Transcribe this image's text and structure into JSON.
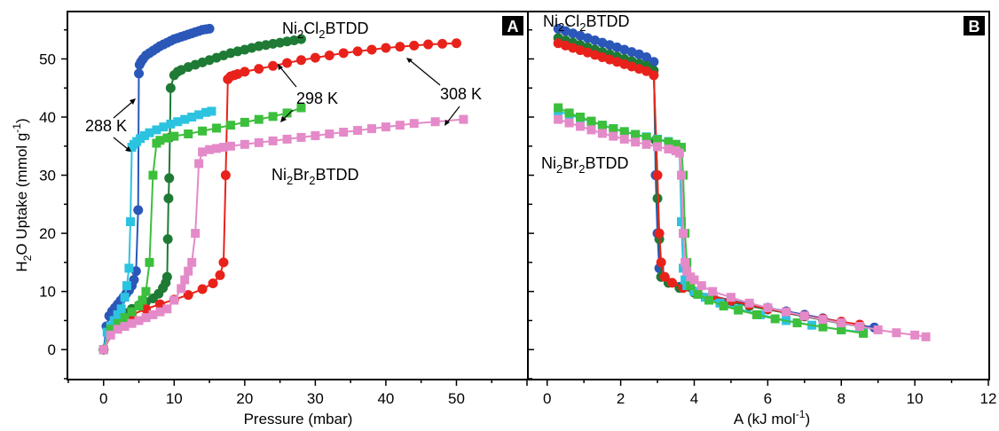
{
  "chart_data": [
    {
      "panel_label": "A",
      "type": "scatter",
      "xlabel": "Pressure (mbar)",
      "ylabel": "H2O Uptake (mmol g-1)",
      "ylabel_parts": {
        "a": "H",
        "b": "2",
        "c": "O Uptake (mmol g",
        "d": "-1",
        "e": ")"
      },
      "xlim": [
        -5,
        60
      ],
      "ylim": [
        -5,
        58
      ],
      "xticks": [
        "0",
        "10",
        "20",
        "30",
        "40",
        "50"
      ],
      "yticks": [
        "0",
        "10",
        "20",
        "30",
        "40",
        "50"
      ],
      "grid": false,
      "annotations": {
        "cl_label": {
          "a": "Ni",
          "b": "2",
          "c": "Cl",
          "d": "2",
          "e": "BTDD"
        },
        "br_label": {
          "a": "Ni",
          "b": "2",
          "c": "Br",
          "d": "2",
          "e": "BTDD"
        },
        "t288": "288 K",
        "t298": "298 K",
        "t308": "308 K"
      },
      "series": [
        {
          "compound": "Ni2Cl2BTDD",
          "temp": "288 K",
          "marker": "circle",
          "color": "#2b57b8",
          "x": [
            0,
            0.4,
            0.8,
            1.2,
            1.6,
            2.0,
            2.4,
            2.8,
            3.2,
            3.6,
            4.0,
            4.3,
            4.6,
            4.9,
            5.0,
            5.1,
            5.3,
            5.6,
            6.0,
            6.5,
            7.0,
            7.5,
            8.0,
            8.5,
            9.0,
            9.5,
            10.0,
            10.5,
            11.0,
            11.5,
            12.0,
            12.5,
            13.0,
            13.5,
            14.0,
            14.5,
            15.0
          ],
          "y": [
            0,
            4.0,
            5.8,
            6.6,
            7.2,
            7.8,
            8.4,
            9.0,
            9.6,
            10.2,
            11.0,
            12.0,
            13.5,
            24,
            47.5,
            49.0,
            49.5,
            50.0,
            50.6,
            51.0,
            51.4,
            51.8,
            52.2,
            52.5,
            52.8,
            53.1,
            53.4,
            53.6,
            53.8,
            54.0,
            54.2,
            54.4,
            54.6,
            54.8,
            55.0,
            55.1,
            55.2
          ]
        },
        {
          "compound": "Ni2Cl2BTDD",
          "temp": "298 K",
          "marker": "circle",
          "color": "#1e7a34",
          "x": [
            0,
            1,
            2,
            3,
            4,
            5,
            6,
            7,
            7.8,
            8.4,
            8.8,
            9.0,
            9.1,
            9.2,
            9.3,
            9.4,
            9.5,
            10.0,
            10.5,
            11,
            12,
            13,
            14,
            15,
            16,
            17,
            18,
            19,
            20,
            21,
            22,
            23,
            24,
            25,
            26,
            27,
            28
          ],
          "y": [
            0,
            4.0,
            5.5,
            6.3,
            7.0,
            7.6,
            8.2,
            8.8,
            9.6,
            10.6,
            11.5,
            12.5,
            19,
            26,
            29.5,
            36.5,
            45,
            47.2,
            47.8,
            48.1,
            48.6,
            49.0,
            49.4,
            49.8,
            50.2,
            50.6,
            51.0,
            51.3,
            51.6,
            51.9,
            52.2,
            52.4,
            52.6,
            52.8,
            53.0,
            53.2,
            53.4
          ]
        },
        {
          "compound": "Ni2Cl2BTDD",
          "temp": "308 K",
          "marker": "circle",
          "color": "#e8221b",
          "x": [
            0,
            2,
            4,
            6,
            8,
            10,
            12,
            14,
            15.5,
            16.5,
            17.0,
            17.3,
            17.6,
            18.0,
            18.5,
            19,
            20,
            22,
            24,
            26,
            28,
            30,
            32,
            34,
            36,
            38,
            40,
            42,
            44,
            46,
            48,
            50
          ],
          "y": [
            0,
            4.5,
            6.0,
            7.0,
            7.8,
            8.6,
            9.4,
            10.4,
            11.4,
            12.8,
            15,
            30,
            46.5,
            47.0,
            47.2,
            47.4,
            47.8,
            48.3,
            48.8,
            49.3,
            49.8,
            50.2,
            50.6,
            51.0,
            51.3,
            51.6,
            51.9,
            52.1,
            52.3,
            52.5,
            52.6,
            52.7
          ]
        },
        {
          "compound": "Ni2Br2BTDD",
          "temp": "288 K",
          "marker": "square",
          "color": "#2cc3e0",
          "x": [
            0,
            0.5,
            1.0,
            1.5,
            2.0,
            2.5,
            3.0,
            3.3,
            3.6,
            3.8,
            4.0,
            4.3,
            4.7,
            5.2,
            5.8,
            6.5,
            7.5,
            8.5,
            9.5,
            10.5,
            11.5,
            12.5,
            13.5,
            14.5,
            15.3
          ],
          "y": [
            0,
            3.0,
            4.0,
            5.0,
            6.0,
            7.0,
            9.0,
            11,
            14,
            22,
            34.8,
            35.3,
            35.8,
            36.3,
            36.8,
            37.3,
            37.8,
            38.3,
            38.8,
            39.2,
            39.6,
            40.0,
            40.4,
            40.8,
            41.0
          ]
        },
        {
          "compound": "Ni2Br2BTDD",
          "temp": "298 K",
          "marker": "square",
          "color": "#3cbf3c",
          "x": [
            0,
            1,
            2,
            3,
            4,
            5,
            5.5,
            6.0,
            6.5,
            7.0,
            7.5,
            8,
            9,
            10,
            12,
            14,
            16,
            18,
            20,
            22,
            24,
            26,
            28
          ],
          "y": [
            0,
            3.5,
            4.5,
            5.5,
            6.5,
            7.5,
            8.5,
            10,
            15,
            30,
            35.5,
            36.0,
            36.4,
            36.7,
            37.1,
            37.6,
            38.1,
            38.6,
            39.1,
            39.6,
            40.1,
            40.7,
            41.6
          ]
        },
        {
          "compound": "Ni2Br2BTDD",
          "temp": "308 K",
          "marker": "square",
          "color": "#e48ac9",
          "x": [
            0,
            1,
            2,
            3,
            4,
            5,
            6,
            7,
            8,
            9,
            10,
            11,
            11.5,
            12,
            12.5,
            13,
            13.5,
            14,
            15,
            16,
            17,
            18,
            20,
            22,
            24,
            26,
            28,
            30,
            32,
            34,
            36,
            38,
            40,
            42,
            44,
            47,
            51
          ],
          "y": [
            0,
            2.5,
            3.5,
            4.0,
            4.5,
            5.0,
            5.5,
            6.0,
            6.5,
            7.0,
            8.5,
            10.5,
            12,
            13.5,
            15,
            20,
            32,
            34,
            34.4,
            34.6,
            34.8,
            35.0,
            35.3,
            35.6,
            35.9,
            36.2,
            36.5,
            36.8,
            37.1,
            37.4,
            37.7,
            38.0,
            38.3,
            38.6,
            38.9,
            39.2,
            39.6
          ]
        }
      ]
    },
    {
      "panel_label": "B",
      "type": "scatter",
      "xlabel": "A (kJ mol-1)",
      "xlabel_parts": {
        "a": "A (kJ mol",
        "b": "-1",
        "c": ")"
      },
      "xlim": [
        -0.5,
        12
      ],
      "ylim": [
        -5,
        58
      ],
      "xticks": [
        "0",
        "2",
        "4",
        "6",
        "8",
        "10",
        "12"
      ],
      "grid": false,
      "annotations": {
        "cl_label": {
          "a": "Ni",
          "b": "2",
          "c": "Cl",
          "d": "2",
          "e": "BTDD"
        },
        "br_label": {
          "a": "Ni",
          "b": "2",
          "c": "Br",
          "d": "2",
          "e": "BTDD"
        }
      },
      "series": [
        {
          "compound": "Ni2Cl2BTDD",
          "temp": "288 K",
          "marker": "circle",
          "color": "#2b57b8",
          "x": [
            0.3,
            0.5,
            0.7,
            0.9,
            1.1,
            1.3,
            1.5,
            1.7,
            1.9,
            2.1,
            2.3,
            2.5,
            2.7,
            2.9,
            2.95,
            3.0,
            3.05,
            3.1,
            3.3,
            3.6,
            4.0,
            4.5,
            5.0,
            5.5,
            6.0,
            6.5,
            7.0,
            7.5,
            8.0,
            8.5,
            8.9
          ],
          "y": [
            55.2,
            54.8,
            54.4,
            54.0,
            53.6,
            53.2,
            52.8,
            52.4,
            52.0,
            51.6,
            51.2,
            50.8,
            50.3,
            49.5,
            30,
            20,
            14,
            12.5,
            11.5,
            10.8,
            10.0,
            9.2,
            8.5,
            7.8,
            7.2,
            6.6,
            6.0,
            5.4,
            4.8,
            4.2,
            3.8
          ]
        },
        {
          "compound": "Ni2Cl2BTDD",
          "temp": "298 K",
          "marker": "circle",
          "color": "#1e7a34",
          "x": [
            0.3,
            0.5,
            0.7,
            0.9,
            1.1,
            1.3,
            1.5,
            1.7,
            1.9,
            2.1,
            2.3,
            2.5,
            2.7,
            2.9,
            2.95,
            3.0,
            3.05,
            3.1,
            3.3,
            3.6,
            4.0,
            4.5,
            5.0,
            5.5,
            6.0,
            6.5,
            7.0,
            7.5,
            8.0,
            8.5
          ],
          "y": [
            53.6,
            53.2,
            52.8,
            52.4,
            52.0,
            51.6,
            51.2,
            50.8,
            50.4,
            50.0,
            49.6,
            49.2,
            48.8,
            48.0,
            36,
            26,
            19,
            12.5,
            11.5,
            10.6,
            9.8,
            9.0,
            8.2,
            7.5,
            6.9,
            6.3,
            5.7,
            5.1,
            4.5,
            4.0
          ]
        },
        {
          "compound": "Ni2Cl2BTDD",
          "temp": "308 K",
          "marker": "circle",
          "color": "#e8221b",
          "x": [
            0.3,
            0.5,
            0.7,
            0.9,
            1.1,
            1.3,
            1.5,
            1.7,
            1.9,
            2.1,
            2.3,
            2.5,
            2.7,
            2.9,
            3.0,
            3.05,
            3.1,
            3.2,
            3.4,
            3.7,
            4.0,
            4.5,
            5.0,
            5.5,
            6.0,
            6.5,
            7.0,
            7.5,
            8.0,
            8.5
          ],
          "y": [
            52.7,
            52.3,
            51.9,
            51.5,
            51.1,
            50.7,
            50.3,
            49.9,
            49.5,
            49.1,
            48.7,
            48.3,
            47.9,
            47.2,
            30,
            20,
            15,
            12.5,
            11.5,
            10.6,
            10.0,
            9.2,
            8.4,
            7.7,
            7.0,
            6.4,
            5.8,
            5.3,
            4.8,
            4.3
          ]
        },
        {
          "compound": "Ni2Br2BTDD",
          "temp": "288 K",
          "marker": "square",
          "color": "#2cc3e0",
          "x": [
            0.3,
            0.6,
            0.9,
            1.2,
            1.5,
            1.8,
            2.1,
            2.4,
            2.7,
            3.0,
            3.3,
            3.5,
            3.6,
            3.65,
            3.7,
            3.75,
            3.8,
            4.0,
            4.3,
            4.7,
            5.2,
            5.8,
            6.5,
            7.2,
            8.0,
            8.6
          ],
          "y": [
            41.0,
            40.4,
            39.8,
            39.2,
            38.6,
            38.0,
            37.5,
            37.0,
            36.6,
            36.2,
            35.8,
            35.3,
            34.8,
            22,
            14,
            12,
            11,
            10,
            9.0,
            8.0,
            7.0,
            6.0,
            5.0,
            4.2,
            3.4,
            3.0
          ]
        },
        {
          "compound": "Ni2Br2BTDD",
          "temp": "298 K",
          "marker": "square",
          "color": "#3cbf3c",
          "x": [
            0.3,
            0.6,
            0.9,
            1.2,
            1.5,
            1.8,
            2.1,
            2.4,
            2.7,
            3.0,
            3.3,
            3.5,
            3.65,
            3.7,
            3.75,
            3.8,
            3.9,
            4.1,
            4.4,
            4.8,
            5.2,
            5.7,
            6.2,
            6.8,
            7.5,
            8.0,
            8.6
          ],
          "y": [
            41.6,
            40.7,
            40.0,
            39.3,
            38.6,
            38.0,
            37.5,
            37.0,
            36.5,
            36.1,
            35.7,
            35.3,
            34.8,
            30,
            20,
            15,
            11,
            9.5,
            8.5,
            7.5,
            6.8,
            6.0,
            5.3,
            4.6,
            3.9,
            3.4,
            2.8
          ]
        },
        {
          "compound": "Ni2Br2BTDD",
          "temp": "308 K",
          "marker": "square",
          "color": "#e48ac9",
          "x": [
            0.3,
            0.6,
            0.9,
            1.2,
            1.5,
            1.8,
            2.1,
            2.4,
            2.7,
            3.0,
            3.3,
            3.5,
            3.6,
            3.65,
            3.7,
            3.75,
            3.8,
            3.9,
            4.0,
            4.2,
            4.5,
            5.0,
            5.5,
            6.0,
            6.5,
            7.0,
            7.5,
            8.0,
            8.5,
            9.0,
            9.5,
            10.0,
            10.3
          ],
          "y": [
            39.6,
            39.0,
            38.4,
            37.8,
            37.2,
            36.7,
            36.2,
            35.7,
            35.3,
            34.9,
            34.5,
            34.2,
            33.8,
            30,
            20,
            15,
            13.5,
            12.5,
            12.0,
            11.0,
            10.0,
            9.0,
            8.0,
            7.2,
            6.5,
            5.8,
            5.2,
            4.6,
            4.0,
            3.4,
            2.9,
            2.5,
            2.2
          ]
        }
      ]
    }
  ]
}
